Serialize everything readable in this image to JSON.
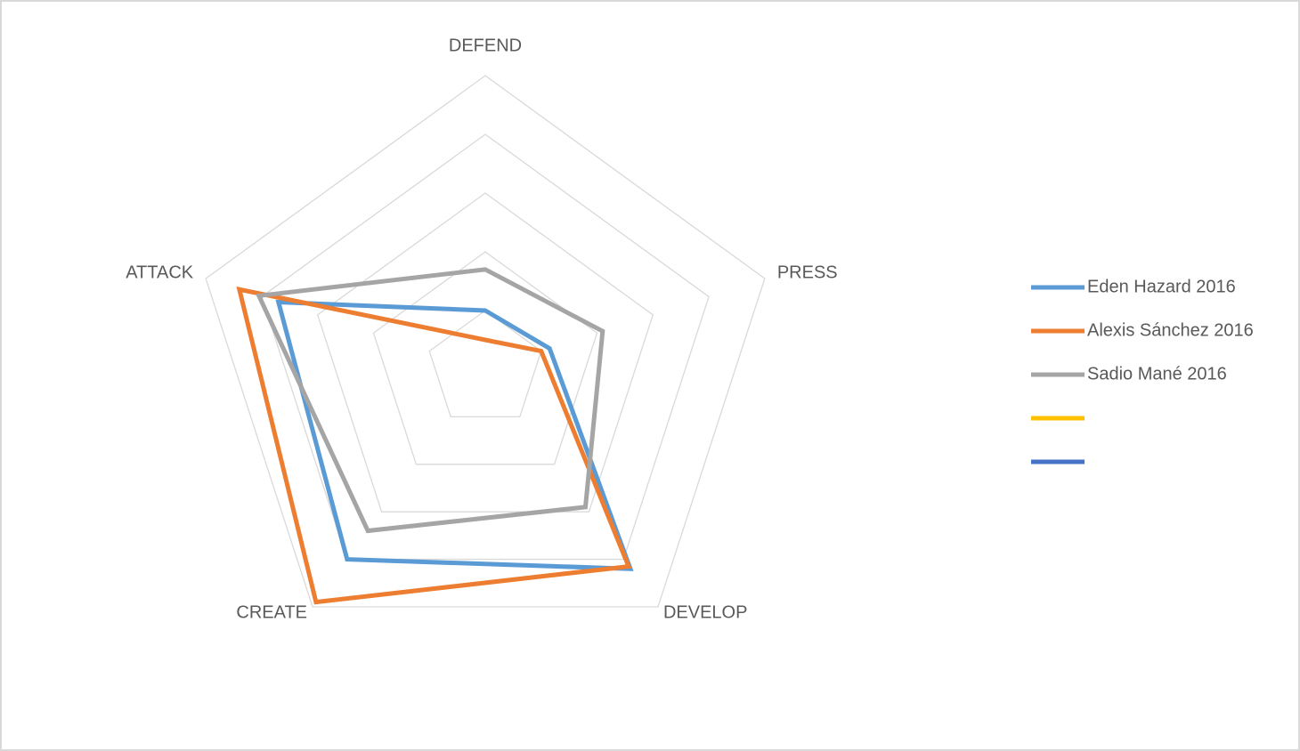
{
  "chart_data": {
    "type": "radar",
    "categories": [
      "DEFEND",
      "PRESS",
      "DEVELOP",
      "CREATE",
      "ATTACK"
    ],
    "rlim": [
      0,
      5
    ],
    "rticks": [
      1,
      2,
      3,
      4,
      5
    ],
    "grid": true,
    "legend": "right",
    "series": [
      {
        "name": "Eden Hazard 2016",
        "color": "#5b9bd5",
        "values": [
          1.0,
          1.15,
          4.2,
          4.0,
          3.7
        ]
      },
      {
        "name": "Alexis Sánchez 2016",
        "color": "#ed7d31",
        "values": [
          0.5,
          1.0,
          4.15,
          4.9,
          4.4
        ]
      },
      {
        "name": "Sadio Mané 2016",
        "color": "#a5a5a5",
        "values": [
          1.7,
          2.1,
          2.9,
          3.4,
          4.05
        ]
      },
      {
        "name": null,
        "color": "#ffc000",
        "values": [
          null,
          null,
          null,
          null,
          null
        ]
      },
      {
        "name": null,
        "color": "#4472c4",
        "values": [
          null,
          null,
          null,
          null,
          null
        ]
      }
    ]
  }
}
